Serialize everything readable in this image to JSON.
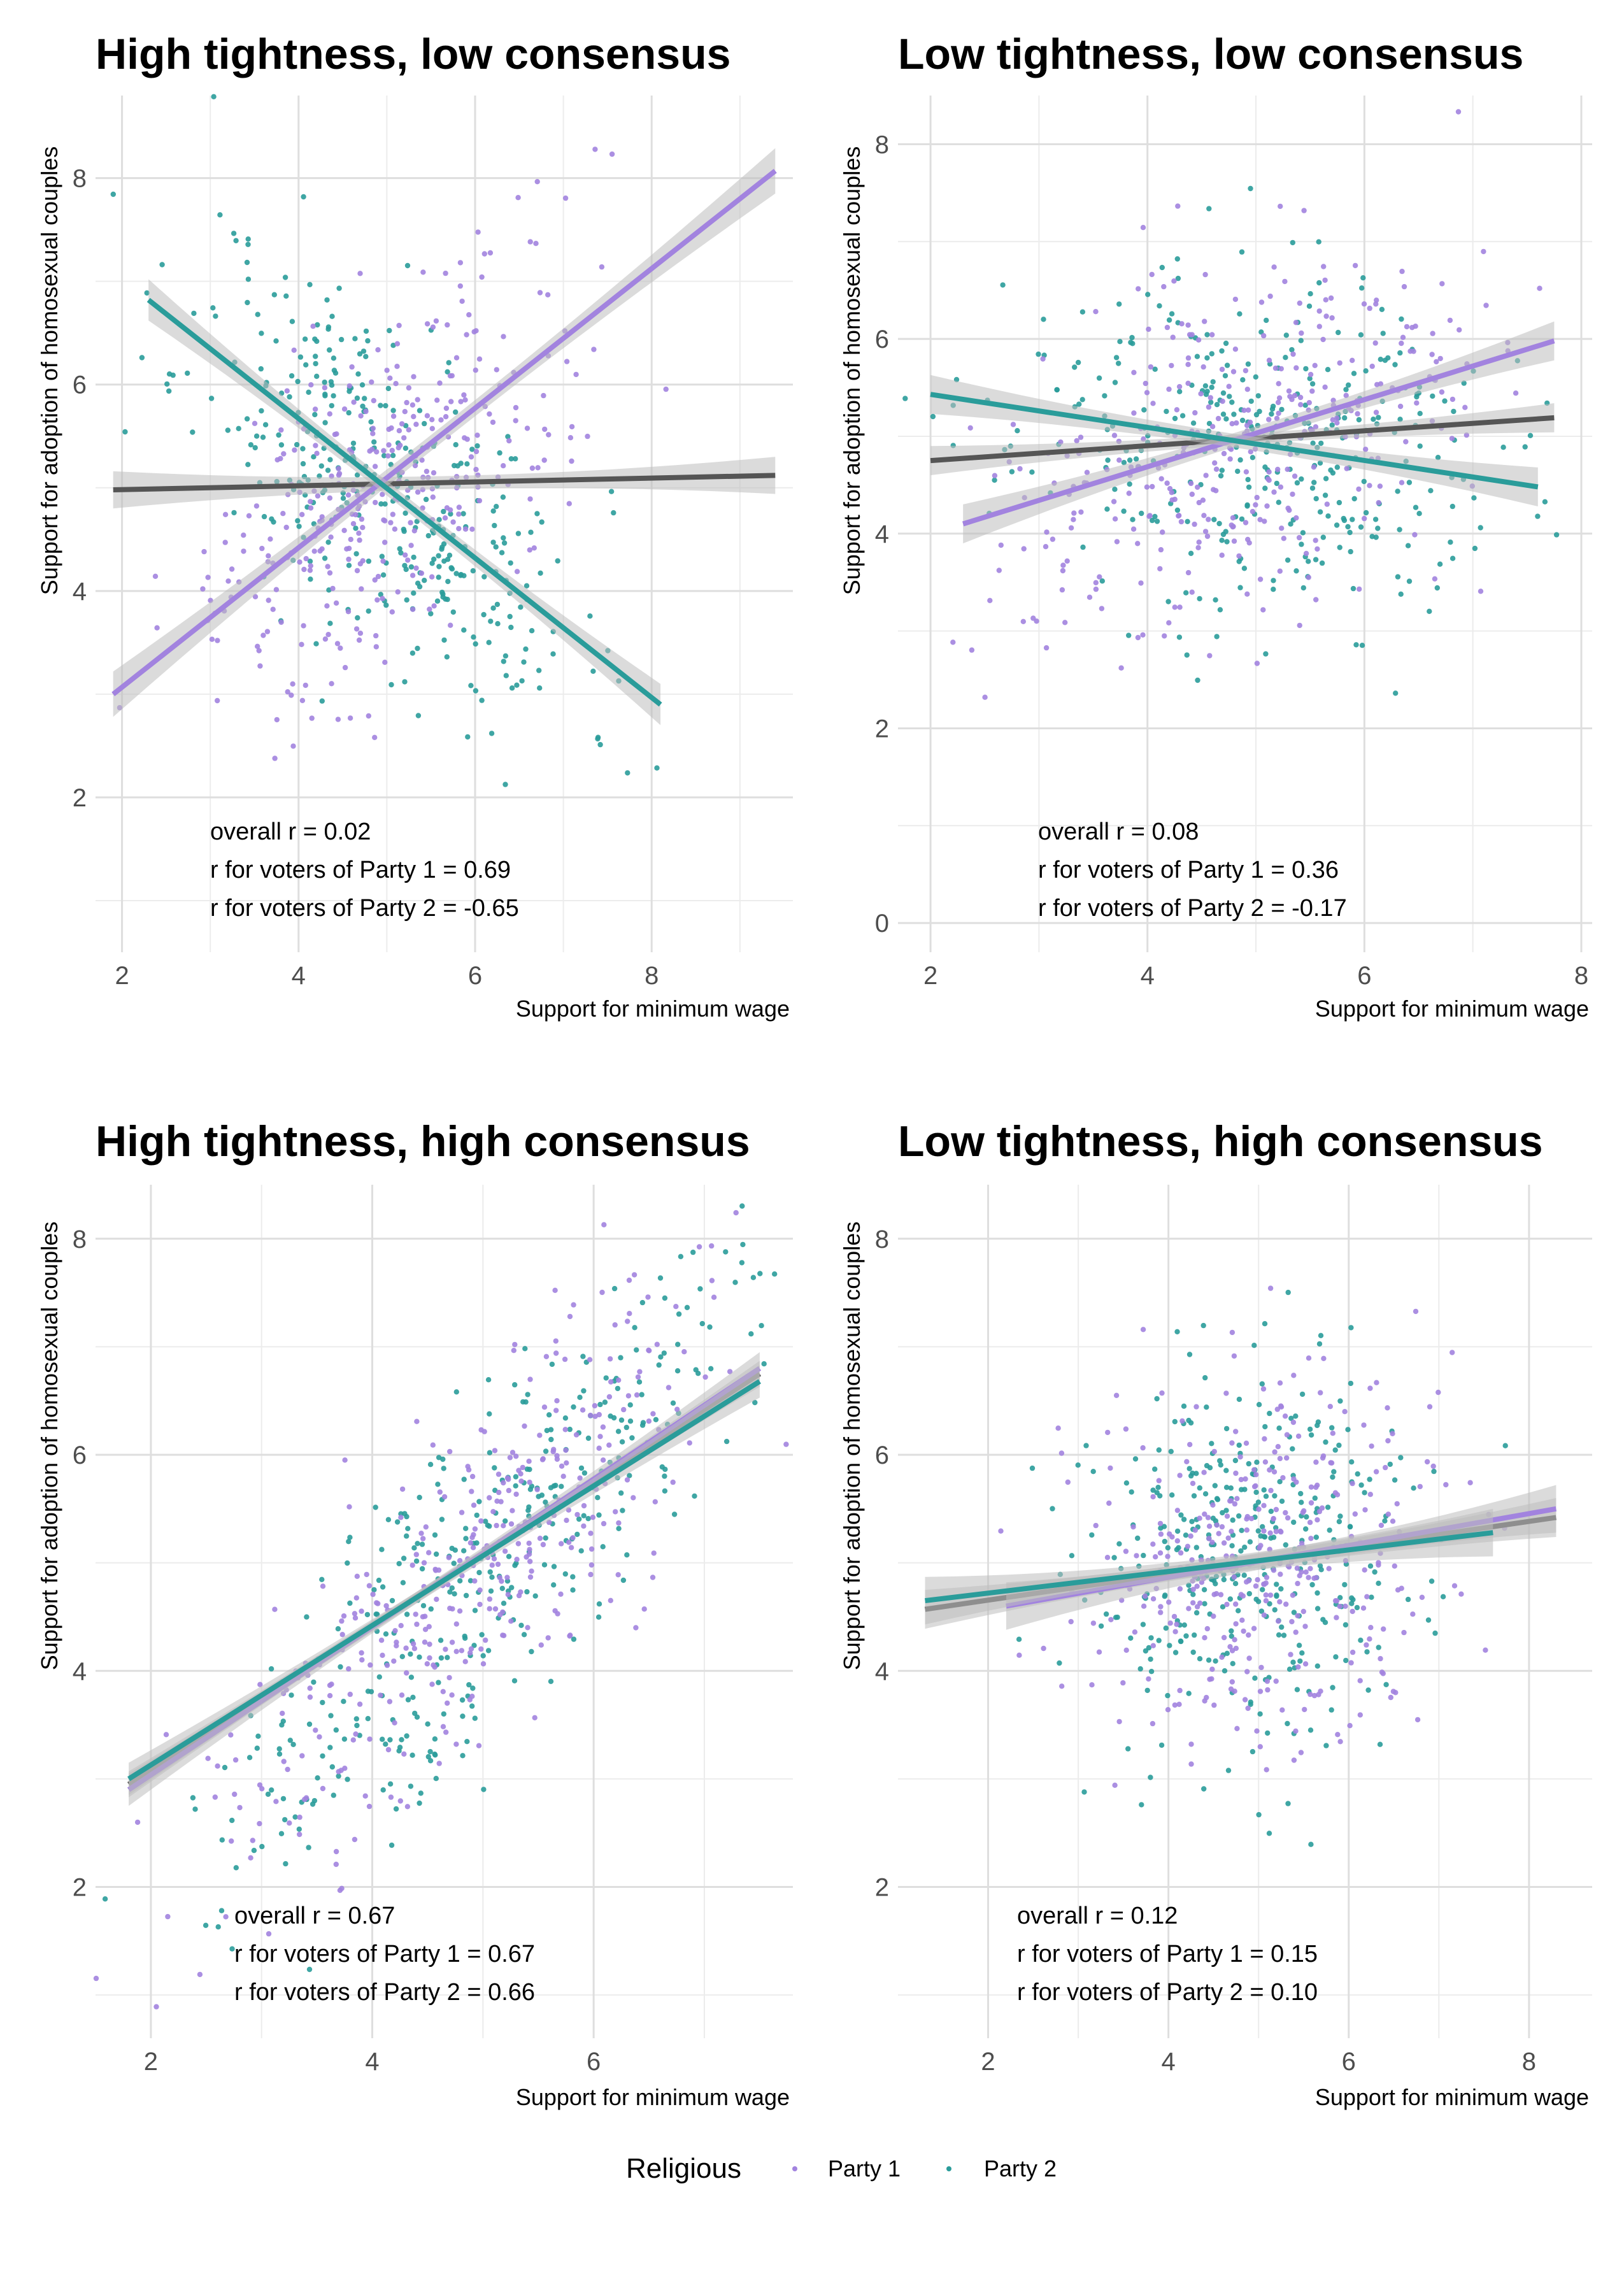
{
  "legend": {
    "title": "Religious",
    "items": [
      {
        "label": "Party 1",
        "color": "#a283df"
      },
      {
        "label": "Party 2",
        "color": "#2a9c9a"
      }
    ]
  },
  "colors": {
    "overall": "#555555",
    "band": "#bdbdbd",
    "grid": "#dedede"
  },
  "chart_data": [
    {
      "type": "scatter",
      "title": "High tightness, low consensus",
      "xlabel": "Support for minimum wage",
      "ylabel": "Support for adoption of homosexual couples",
      "xlim": [
        1.7,
        9.6
      ],
      "ylim": [
        0.5,
        8.8
      ],
      "xticks": [
        2,
        4,
        6,
        8
      ],
      "yticks": [
        2,
        4,
        6,
        8
      ],
      "cloud": {
        "cx": 5.0,
        "cy": 5.0,
        "sx": 1.1,
        "sy": 1.0,
        "n": 360,
        "seed": 11
      },
      "annotations": [
        "overall r = 0.02",
        "r for voters of Party 1 = 0.69",
        "r for voters of Party 2 = -0.65"
      ],
      "lines": [
        {
          "name": "overall r = 0.02",
          "x": [
            1.9,
            9.4
          ],
          "y": [
            4.98,
            5.12
          ],
          "band": 0.18
        },
        {
          "name": "r for voters of Party 1 = 0.69",
          "x": [
            1.9,
            9.4
          ],
          "y": [
            3.0,
            8.07
          ],
          "band": 0.22
        },
        {
          "name": "r for voters of Party 2 = -0.65",
          "x": [
            2.3,
            8.1
          ],
          "y": [
            6.82,
            2.9
          ],
          "band": 0.2
        }
      ]
    },
    {
      "type": "scatter",
      "title": "Low tightness, low consensus",
      "xlabel": "Support for minimum wage",
      "ylabel": "Support for adoption of homosexual couples",
      "xlim": [
        1.7,
        8.1
      ],
      "ylim": [
        -0.3,
        8.5
      ],
      "xticks": [
        2,
        4,
        6,
        8
      ],
      "yticks": [
        0,
        2,
        4,
        6,
        8
      ],
      "cloud": {
        "cx": 5.0,
        "cy": 4.95,
        "sx": 1.1,
        "sy": 1.0,
        "n": 360,
        "seed": 23
      },
      "annotations": [
        "overall r = 0.08",
        "r for voters of Party 1 = 0.36",
        "r for voters of Party 2 = -0.17"
      ],
      "lines": [
        {
          "name": "overall r = 0.08",
          "x": [
            2.0,
            7.75
          ],
          "y": [
            4.75,
            5.19
          ],
          "band": 0.15
        },
        {
          "name": "r for voters of Party 1 = 0.36",
          "x": [
            2.3,
            7.75
          ],
          "y": [
            4.1,
            5.98
          ],
          "band": 0.2
        },
        {
          "name": "r for voters of Party 2 = -0.17",
          "x": [
            2.0,
            7.6
          ],
          "y": [
            5.43,
            4.48
          ],
          "band": 0.2
        }
      ]
    },
    {
      "type": "scatter",
      "title": "High tightness, high consensus",
      "xlabel": "Support for minimum wage",
      "ylabel": "Support for adoption of homosexual couples",
      "xlim": [
        1.5,
        7.8
      ],
      "ylim": [
        0.6,
        8.5
      ],
      "xticks": [
        2,
        4,
        6
      ],
      "yticks": [
        2,
        4,
        6,
        8
      ],
      "cloud": {
        "cx": 5.0,
        "cy": 5.0,
        "sx": 1.1,
        "sy": 1.1,
        "n": 380,
        "seed": 37,
        "slope": 1.0,
        "resid": 0.75
      },
      "annotations": [
        "overall r = 0.67",
        "r for voters of Party 1 = 0.67",
        "r for voters of Party 2 = 0.66"
      ],
      "lines": [
        {
          "name": "overall r = 0.67",
          "x": [
            1.8,
            7.5
          ],
          "y": [
            2.95,
            6.75
          ],
          "band": 0.12
        },
        {
          "name": "r for voters of Party 1 = 0.67",
          "x": [
            1.8,
            7.5
          ],
          "y": [
            2.9,
            6.8
          ],
          "band": 0.15
        },
        {
          "name": "r for voters of Party 2 = 0.66",
          "x": [
            1.8,
            7.5
          ],
          "y": [
            3.0,
            6.68
          ],
          "band": 0.15
        }
      ]
    },
    {
      "type": "scatter",
      "title": "Low tightness, high consensus",
      "xlabel": "Support for minimum wage",
      "ylabel": "Support for adoption of homosexual couples",
      "xlim": [
        1.0,
        8.7
      ],
      "ylim": [
        0.6,
        8.5
      ],
      "xticks": [
        2,
        4,
        6,
        8
      ],
      "yticks": [
        2,
        4,
        6,
        8
      ],
      "cloud": {
        "cx": 5.0,
        "cy": 5.0,
        "sx": 1.0,
        "sy": 1.05,
        "n": 380,
        "seed": 53
      },
      "annotations": [
        "overall r = 0.12",
        "r for voters of Party 1 = 0.15",
        "r for voters of Party 2 = 0.10"
      ],
      "lines": [
        {
          "name": "overall r = 0.12",
          "x": [
            1.3,
            8.3
          ],
          "y": [
            4.57,
            5.42
          ],
          "band": 0.18
        },
        {
          "name": "r for voters of Party 1 = 0.15",
          "x": [
            2.2,
            8.3
          ],
          "y": [
            4.6,
            5.5
          ],
          "band": 0.22
        },
        {
          "name": "r for voters of Party 2 = 0.10",
          "x": [
            1.3,
            7.6
          ],
          "y": [
            4.65,
            5.28
          ],
          "band": 0.22
        }
      ]
    }
  ]
}
